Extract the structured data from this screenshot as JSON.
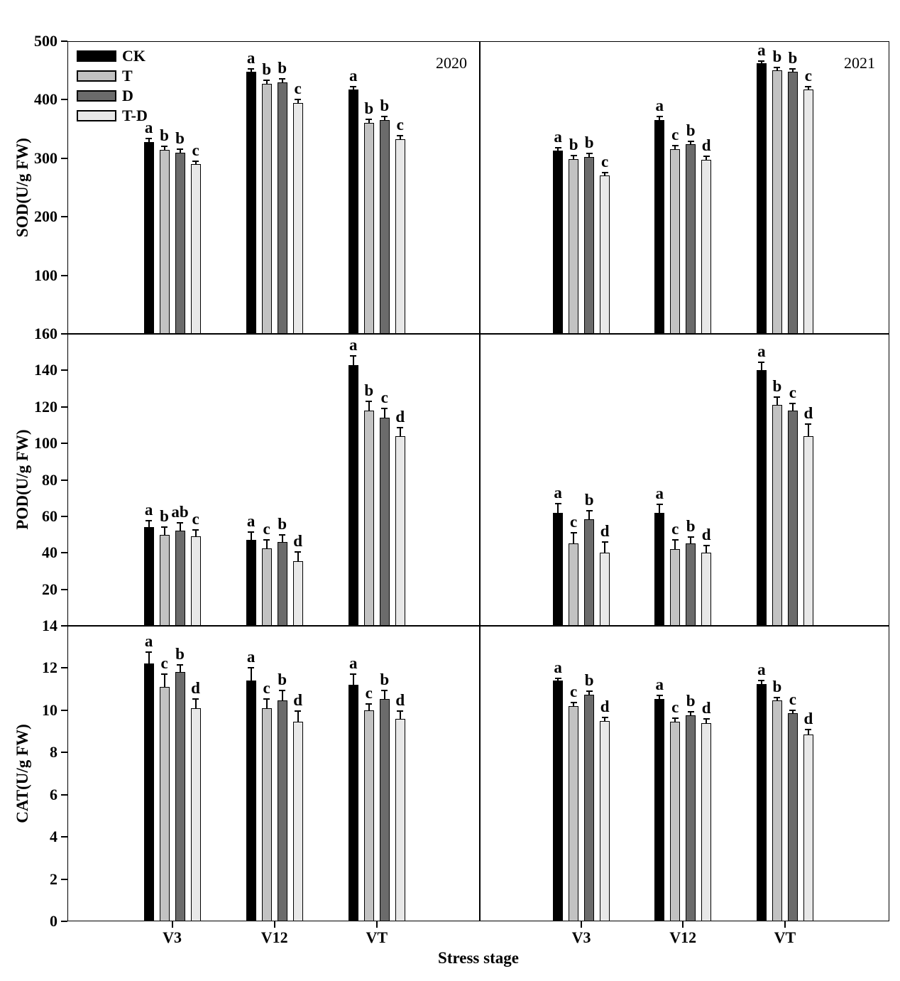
{
  "figure": {
    "xlabel": "Stress stage",
    "col_labels": [
      "2020",
      "2021"
    ],
    "legend": {
      "items": [
        {
          "label": "CK",
          "color": "#000000"
        },
        {
          "label": "T",
          "color": "#c2c2c2"
        },
        {
          "label": "D",
          "color": "#6b6b6b"
        },
        {
          "label": "T-D",
          "color": "#e8e8e8"
        }
      ]
    }
  },
  "chart_data": {
    "type": "bar",
    "categories": [
      "V3",
      "V12",
      "VT"
    ],
    "grid": false,
    "legend_position": "top-left of first panel",
    "error_bars": "upper, capped",
    "rows": [
      {
        "ylabel": "SOD(U/g FW)",
        "ylim": [
          0,
          500
        ],
        "yticks": [
          100,
          200,
          300,
          400,
          500
        ],
        "panels": [
          {
            "year": "2020",
            "series": [
              {
                "name": "CK",
                "color": "#000000",
                "values": [
                  328,
                  448,
                  417
                ],
                "errors": [
                  6,
                  5,
                  5
                ],
                "letters": [
                  "a",
                  "a",
                  "a"
                ]
              },
              {
                "name": "T",
                "color": "#c2c2c2",
                "values": [
                  314,
                  427,
                  360
                ],
                "errors": [
                  6,
                  6,
                  6
                ],
                "letters": [
                  "b",
                  "b",
                  "b"
                ]
              },
              {
                "name": "D",
                "color": "#6b6b6b",
                "values": [
                  309,
                  430,
                  365
                ],
                "errors": [
                  6,
                  6,
                  6
                ],
                "letters": [
                  "b",
                  "b",
                  "b"
                ]
              },
              {
                "name": "T-D",
                "color": "#e8e8e8",
                "values": [
                  290,
                  394,
                  333
                ],
                "errors": [
                  5,
                  6,
                  6
                ],
                "letters": [
                  "c",
                  "c",
                  "c"
                ]
              }
            ]
          },
          {
            "year": "2021",
            "series": [
              {
                "name": "CK",
                "color": "#000000",
                "values": [
                  313,
                  365,
                  462
                ],
                "errors": [
                  5,
                  6,
                  4
                ],
                "letters": [
                  "a",
                  "a",
                  "a"
                ]
              },
              {
                "name": "T",
                "color": "#c2c2c2",
                "values": [
                  299,
                  315,
                  450
                ],
                "errors": [
                  6,
                  6,
                  5
                ],
                "letters": [
                  "b",
                  "c",
                  "b"
                ]
              },
              {
                "name": "D",
                "color": "#6b6b6b",
                "values": [
                  302,
                  324,
                  448
                ],
                "errors": [
                  6,
                  5,
                  5
                ],
                "letters": [
                  "b",
                  "b",
                  "b"
                ]
              },
              {
                "name": "T-D",
                "color": "#e8e8e8",
                "values": [
                  271,
                  297,
                  417
                ],
                "errors": [
                  5,
                  6,
                  5
                ],
                "letters": [
                  "c",
                  "d",
                  "c"
                ]
              }
            ]
          }
        ]
      },
      {
        "ylabel": "POD(U/g FW)",
        "ylim": [
          0,
          160
        ],
        "yticks": [
          20,
          40,
          60,
          80,
          100,
          120,
          140,
          160
        ],
        "panels": [
          {
            "year": "2020",
            "series": [
              {
                "name": "CK",
                "color": "#000000",
                "values": [
                  54,
                  47,
                  143
                ],
                "errors": [
                  3.5,
                  4.5,
                  5
                ],
                "letters": [
                  "a",
                  "a",
                  "a"
                ]
              },
              {
                "name": "T",
                "color": "#c2c2c2",
                "values": [
                  50,
                  42.5,
                  118
                ],
                "errors": [
                  4,
                  4.5,
                  5
                ],
                "letters": [
                  "b",
                  "c",
                  "b"
                ]
              },
              {
                "name": "D",
                "color": "#6b6b6b",
                "values": [
                  52,
                  46,
                  114
                ],
                "errors": [
                  4.5,
                  4,
                  5
                ],
                "letters": [
                  "ab",
                  "b",
                  "c"
                ]
              },
              {
                "name": "T-D",
                "color": "#e8e8e8",
                "values": [
                  49,
                  35.5,
                  104
                ],
                "errors": [
                  3.5,
                  5,
                  4.5
                ],
                "letters": [
                  "c",
                  "d",
                  "d"
                ]
              }
            ]
          },
          {
            "year": "2021",
            "series": [
              {
                "name": "CK",
                "color": "#000000",
                "values": [
                  62,
                  62,
                  140
                ],
                "errors": [
                  5,
                  4.5,
                  4.5
                ],
                "letters": [
                  "a",
                  "a",
                  "a"
                ]
              },
              {
                "name": "T",
                "color": "#c2c2c2",
                "values": [
                  45,
                  42,
                  121
                ],
                "errors": [
                  6,
                  5,
                  4.5
                ],
                "letters": [
                  "c",
                  "c",
                  "b"
                ]
              },
              {
                "name": "D",
                "color": "#6b6b6b",
                "values": [
                  58.5,
                  45,
                  118
                ],
                "errors": [
                  4.5,
                  3.5,
                  4
                ],
                "letters": [
                  "b",
                  "b",
                  "c"
                ]
              },
              {
                "name": "T-D",
                "color": "#e8e8e8",
                "values": [
                  40,
                  40,
                  104
                ],
                "errors": [
                  6,
                  4,
                  6.5
                ],
                "letters": [
                  "d",
                  "d",
                  "d"
                ]
              }
            ]
          }
        ]
      },
      {
        "ylabel": "CAT(U/g FW)",
        "ylim": [
          0,
          14
        ],
        "yticks": [
          0,
          2,
          4,
          6,
          8,
          10,
          12,
          14
        ],
        "panels": [
          {
            "year": "2020",
            "series": [
              {
                "name": "CK",
                "color": "#000000",
                "values": [
                  12.2,
                  11.4,
                  11.2
                ],
                "errors": [
                  0.55,
                  0.6,
                  0.5
                ],
                "letters": [
                  "a",
                  "a",
                  "a"
                ]
              },
              {
                "name": "T",
                "color": "#c2c2c2",
                "values": [
                  11.1,
                  10.1,
                  10.0
                ],
                "errors": [
                  0.6,
                  0.45,
                  0.3
                ],
                "letters": [
                  "c",
                  "c",
                  "c"
                ]
              },
              {
                "name": "D",
                "color": "#6b6b6b",
                "values": [
                  11.8,
                  10.45,
                  10.55
                ],
                "errors": [
                  0.35,
                  0.5,
                  0.4
                ],
                "letters": [
                  "b",
                  "b",
                  "b"
                ]
              },
              {
                "name": "T-D",
                "color": "#e8e8e8",
                "values": [
                  10.1,
                  9.45,
                  9.6
                ],
                "errors": [
                  0.45,
                  0.5,
                  0.35
                ],
                "letters": [
                  "d",
                  "d",
                  "d"
                ]
              }
            ]
          },
          {
            "year": "2021",
            "series": [
              {
                "name": "CK",
                "color": "#000000",
                "values": [
                  11.4,
                  10.55,
                  11.25
                ],
                "errors": [
                  0.1,
                  0.15,
                  0.15
                ],
                "letters": [
                  "a",
                  "a",
                  "a"
                ]
              },
              {
                "name": "T",
                "color": "#c2c2c2",
                "values": [
                  10.2,
                  9.45,
                  10.45
                ],
                "errors": [
                  0.17,
                  0.17,
                  0.16
                ],
                "letters": [
                  "c",
                  "c",
                  "b"
                ]
              },
              {
                "name": "D",
                "color": "#6b6b6b",
                "values": [
                  10.75,
                  9.75,
                  9.85
                ],
                "errors": [
                  0.15,
                  0.17,
                  0.15
                ],
                "letters": [
                  "b",
                  "b",
                  "c"
                ]
              },
              {
                "name": "T-D",
                "color": "#e8e8e8",
                "values": [
                  9.5,
                  9.4,
                  8.85
                ],
                "errors": [
                  0.17,
                  0.2,
                  0.22
                ],
                "letters": [
                  "d",
                  "d",
                  "d"
                ]
              }
            ]
          }
        ]
      }
    ]
  }
}
